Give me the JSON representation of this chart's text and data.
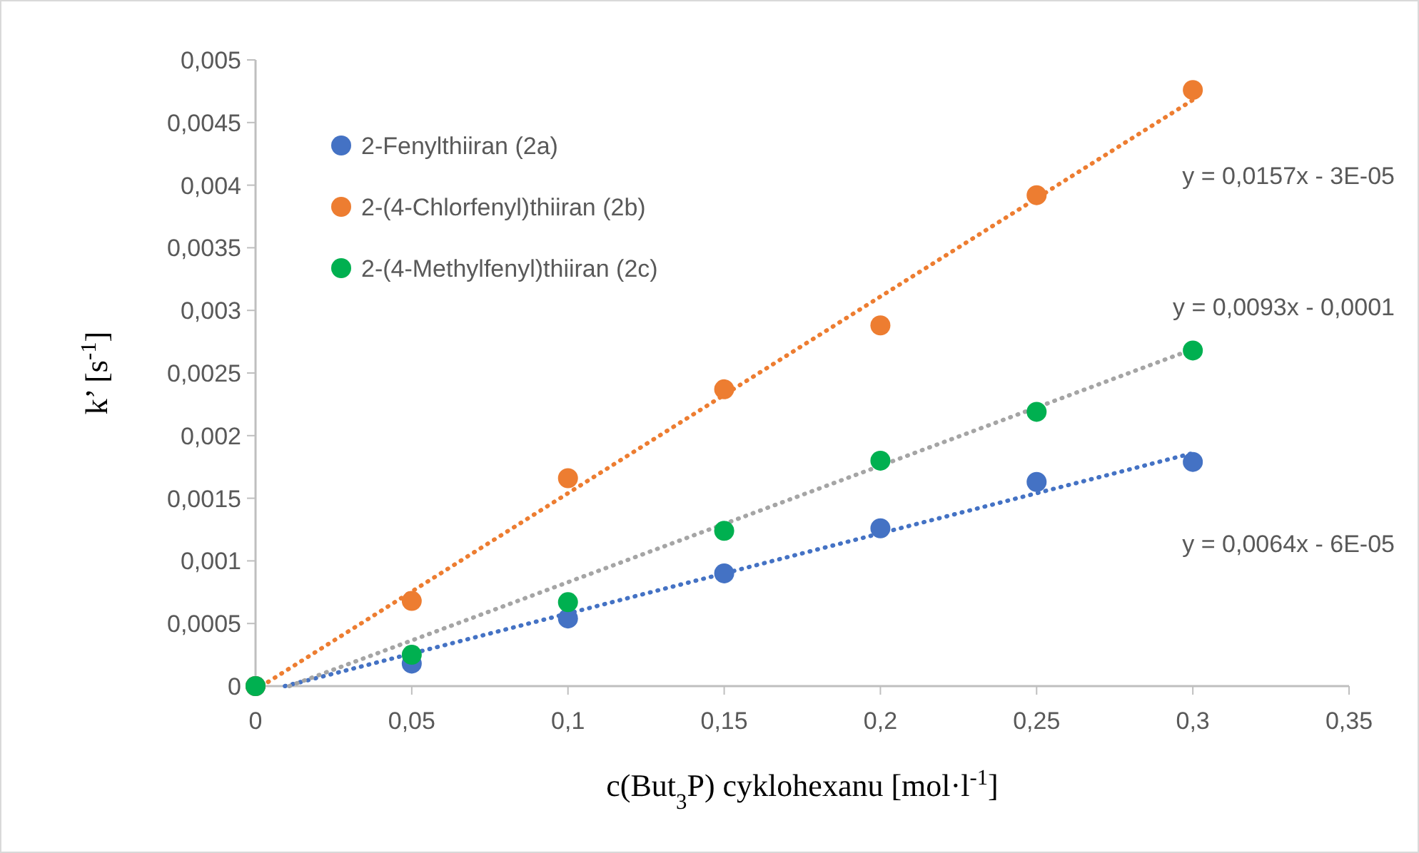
{
  "chart_data": {
    "type": "scatter",
    "xlabel": "c(But$_{3}$P) cyklohexanu [mol·l$^{-1}$]",
    "ylabel": "k’ [s$^{-1}$]",
    "x": [
      0,
      0.05,
      0.1,
      0.15,
      0.2,
      0.25,
      0.3
    ],
    "series": [
      {
        "name": "2-Fenylthiiran (2a)",
        "color": "#4472c4",
        "values": [
          0,
          0.00018,
          0.00054,
          0.0009,
          0.00126,
          0.00163,
          0.00179
        ]
      },
      {
        "name": "2-(4-Chlorfenyl)thiiran (2b)",
        "color": "#ed7d31",
        "values": [
          0,
          0.00068,
          0.00166,
          0.00237,
          0.00288,
          0.00392,
          0.00476
        ]
      },
      {
        "name": "2-(4-Methylfenyl)thiiran (2c)",
        "color": "#00b050",
        "values": [
          0,
          0.00025,
          0.00067,
          0.00124,
          0.0018,
          0.00219,
          0.00268
        ]
      },
      {
        "type": "line",
        "color": "#4472c4",
        "line_style": "dotted",
        "marker": "none",
        "x": [
          0.0094,
          0.3
        ],
        "values": [
          0,
          0.00186
        ]
      },
      {
        "type": "line",
        "color": "#ed7d31",
        "line_style": "dotted",
        "marker": "none",
        "x": [
          0.0019,
          0.3
        ],
        "values": [
          0,
          0.00468
        ]
      },
      {
        "type": "line",
        "color": "#a5a5a5",
        "line_style": "dotted",
        "marker": "none",
        "x": [
          0.0108,
          0.3
        ],
        "values": [
          0,
          0.00269
        ]
      }
    ],
    "annotations": [
      "y = 0,0064x - 6E-05",
      "y = 0,0157x - 3E-05",
      "y = 0,0093x - 0,0001"
    ],
    "marker": "circle",
    "legend": "top left",
    "grid": false,
    "xlim": [
      0,
      0.35
    ],
    "xticks": [
      0,
      {
        "value": 0.05,
        "label": "0,05"
      },
      {
        "value": 0.1,
        "label": "0,1"
      },
      {
        "value": 0.15,
        "label": "0,15"
      },
      {
        "value": 0.2,
        "label": "0,2"
      },
      {
        "value": 0.25,
        "label": "0,25"
      },
      {
        "value": 0.3,
        "label": "0,3"
      },
      {
        "value": 0.35,
        "label": "0,35"
      }
    ],
    "ylim": [
      0,
      0.005
    ],
    "yticks": [
      0,
      {
        "value": 0.0005,
        "label": "0,0005"
      },
      {
        "value": 0.001,
        "label": "0,001"
      },
      {
        "value": 0.0015,
        "label": "0,0015"
      },
      {
        "value": 0.002,
        "label": "0,002"
      },
      {
        "value": 0.0025,
        "label": "0,0025"
      },
      {
        "value": 0.003,
        "label": "0,003"
      },
      {
        "value": 0.0035,
        "label": "0,0035"
      },
      {
        "value": 0.004,
        "label": "0,004"
      },
      {
        "value": 0.0045,
        "label": "0,0045"
      },
      {
        "value": 0.005,
        "label": "0,005"
      }
    ]
  }
}
